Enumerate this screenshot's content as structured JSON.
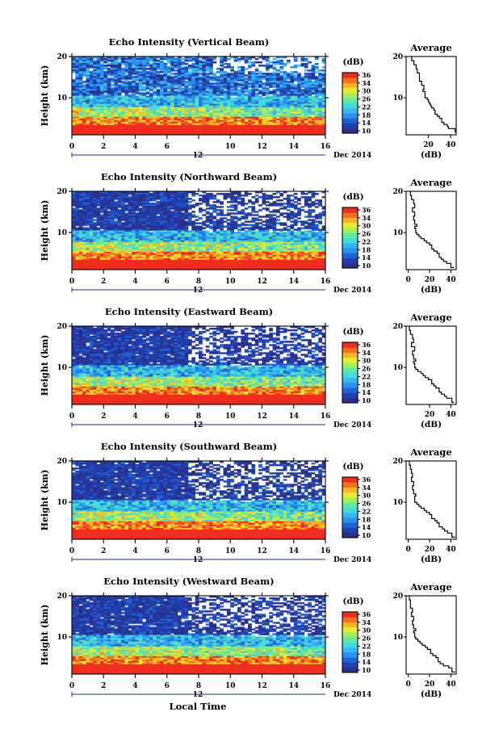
{
  "colors": {
    "colormap": [
      "#2b2f8a",
      "#2140b0",
      "#1f63d8",
      "#2a90f0",
      "#35b8f2",
      "#40dcdc",
      "#5ee8a6",
      "#a3ef5a",
      "#e8ec30",
      "#f8b422",
      "#f86d20",
      "#f02c1e"
    ],
    "line": "#000000",
    "background": "#ffffff"
  },
  "colorbar": {
    "unit": "(dB)",
    "tick_labels": [
      "36",
      "34",
      "30",
      "26",
      "22",
      "18",
      "14",
      "10"
    ],
    "range": [
      10,
      38
    ]
  },
  "profile_title": "Average",
  "profile_xlabel": "(dB)",
  "xaxis": {
    "tick_labels": [
      "0",
      "2",
      "4",
      "6",
      "8",
      "10",
      "12",
      "14",
      "16"
    ],
    "day_label": "12",
    "month_label": "Dec 2014",
    "xlabel": "Local Time"
  },
  "chart_data": [
    {
      "type": "heatmap",
      "title": "Echo Intensity (Vertical Beam)",
      "ylabel": "Height (km)",
      "y_tick_labels": [
        "20",
        "10"
      ],
      "xlim": [
        0,
        16
      ],
      "ylim": [
        1,
        20
      ],
      "x_tick_values": [
        0,
        2,
        4,
        6,
        8,
        10,
        12,
        14,
        16
      ],
      "shown_x_tick_labels": [
        "0",
        "2",
        "4",
        "6",
        "",
        "10",
        "12",
        "14",
        "16"
      ],
      "profile": {
        "type": "line",
        "x_tick_labels": [
          "20",
          "40"
        ],
        "y_tick_labels": [
          "20",
          "10"
        ],
        "xlim": [
          0,
          45
        ],
        "ylim": [
          1,
          20
        ],
        "height_km": [
          1.5,
          2.5,
          3.0,
          3.5,
          4.0,
          5.0,
          5.5,
          6.0,
          7.0,
          7.5,
          8.0,
          8.5,
          9.0,
          9.5,
          10.0,
          11.0,
          11.5,
          12.0,
          13.0,
          14.0,
          15.0,
          16.0,
          17.0,
          18.0,
          19.0,
          20.0
        ],
        "intensity_db": [
          44,
          44,
          38,
          37,
          34,
          32,
          30,
          28,
          26,
          25,
          23,
          22,
          21,
          20,
          19,
          17,
          17,
          15,
          16,
          14,
          12,
          12,
          10,
          9,
          7,
          5
        ]
      }
    },
    {
      "type": "heatmap",
      "title": "Echo Intensity (Northward Beam)",
      "ylabel": "Height (km)",
      "y_tick_labels": [
        "20",
        "10"
      ],
      "xlim": [
        0,
        16
      ],
      "ylim": [
        1,
        20
      ],
      "x_tick_values": [
        0,
        2,
        4,
        6,
        8,
        10,
        12,
        14,
        16
      ],
      "shown_x_tick_labels": [
        "0",
        "2",
        "4",
        "6",
        "8",
        "10",
        "12",
        "14",
        "16"
      ],
      "profile": {
        "type": "line",
        "x_tick_labels": [
          "0",
          "20",
          "40"
        ],
        "y_tick_labels": [
          "20",
          "10"
        ],
        "xlim": [
          -2,
          45
        ],
        "ylim": [
          1,
          20
        ],
        "height_km": [
          1.5,
          2.5,
          3.0,
          3.5,
          4.0,
          5.0,
          5.5,
          6.0,
          7.0,
          7.5,
          8.0,
          8.5,
          9.0,
          9.5,
          10.0,
          11.0,
          11.5,
          12.0,
          13.0,
          14.0,
          15.0,
          16.0,
          17.0,
          18.0,
          19.0,
          20.0
        ],
        "intensity_db": [
          43,
          40,
          36,
          33,
          31,
          29,
          27,
          24,
          22,
          20,
          17,
          15,
          12,
          10,
          8,
          7,
          6,
          8,
          6,
          5,
          6,
          4,
          6,
          5,
          3,
          2
        ]
      }
    },
    {
      "type": "heatmap",
      "title": "Echo Intensity (Eastward Beam)",
      "ylabel": "Height (km)",
      "y_tick_labels": [
        "20",
        "10"
      ],
      "xlim": [
        0,
        16
      ],
      "ylim": [
        1,
        20
      ],
      "x_tick_values": [
        0,
        2,
        4,
        6,
        8,
        10,
        12,
        14,
        16
      ],
      "shown_x_tick_labels": [
        "0",
        "2",
        "4",
        "6",
        "8",
        "10",
        "12",
        "14",
        "16"
      ],
      "profile": {
        "type": "line",
        "x_tick_labels": [
          "20",
          "40"
        ],
        "y_tick_labels": [
          "20",
          "10"
        ],
        "xlim": [
          -2,
          45
        ],
        "ylim": [
          1,
          20
        ],
        "height_km": [
          1.5,
          2.5,
          3.0,
          3.5,
          4.0,
          5.0,
          5.5,
          6.0,
          7.0,
          7.5,
          8.0,
          8.5,
          9.0,
          9.5,
          10.0,
          11.0,
          11.5,
          12.0,
          13.0,
          14.0,
          15.0,
          16.0,
          17.0,
          18.0,
          19.0,
          20.0
        ],
        "intensity_db": [
          43,
          41,
          36,
          34,
          31,
          29,
          26,
          24,
          22,
          19,
          16,
          14,
          12,
          9,
          7,
          6,
          5,
          7,
          5,
          4,
          6,
          3,
          5,
          4,
          2,
          1
        ]
      }
    },
    {
      "type": "heatmap",
      "title": "Echo Intensity (Southward Beam)",
      "ylabel": "Height (km)",
      "y_tick_labels": [
        "20",
        "10"
      ],
      "xlim": [
        0,
        16
      ],
      "ylim": [
        1,
        20
      ],
      "x_tick_values": [
        0,
        2,
        4,
        6,
        8,
        10,
        12,
        14,
        16
      ],
      "shown_x_tick_labels": [
        "0",
        "2",
        "4",
        "6",
        "8",
        "10",
        "12",
        "14",
        "16"
      ],
      "profile": {
        "type": "line",
        "x_tick_labels": [
          "0",
          "20",
          "40"
        ],
        "y_tick_labels": [
          "20",
          "10"
        ],
        "xlim": [
          -2,
          45
        ],
        "ylim": [
          1,
          20
        ],
        "height_km": [
          1.5,
          2.5,
          3.0,
          3.5,
          4.0,
          5.0,
          5.5,
          6.0,
          7.0,
          7.5,
          8.0,
          8.5,
          9.0,
          9.5,
          10.0,
          11.0,
          11.5,
          12.0,
          13.0,
          14.0,
          15.0,
          16.0,
          17.0,
          18.0,
          19.0,
          20.0
        ],
        "intensity_db": [
          44,
          41,
          37,
          34,
          32,
          29,
          27,
          25,
          22,
          20,
          17,
          15,
          12,
          10,
          8,
          6,
          6,
          7,
          5,
          4,
          5,
          3,
          4,
          3,
          2,
          1
        ]
      }
    },
    {
      "type": "heatmap",
      "title": "Echo Intensity (Westward Beam)",
      "ylabel": "Height (km)",
      "y_tick_labels": [
        "20",
        "10"
      ],
      "xlim": [
        0,
        16
      ],
      "ylim": [
        1,
        20
      ],
      "x_tick_values": [
        0,
        2,
        4,
        6,
        8,
        10,
        12,
        14,
        16
      ],
      "shown_x_tick_labels": [
        "0",
        "2",
        "4",
        "6",
        "8",
        "10",
        "12",
        "14",
        "16"
      ],
      "profile": {
        "type": "line",
        "x_tick_labels": [
          "0",
          "20",
          "40"
        ],
        "y_tick_labels": [
          "20",
          "10"
        ],
        "xlim": [
          -2,
          45
        ],
        "ylim": [
          1,
          20
        ],
        "height_km": [
          1.5,
          2.5,
          3.0,
          3.5,
          4.0,
          5.0,
          5.5,
          6.0,
          7.0,
          7.5,
          8.0,
          8.5,
          9.0,
          9.5,
          10.0,
          11.0,
          11.5,
          12.0,
          13.0,
          14.0,
          15.0,
          16.0,
          17.0,
          18.0,
          19.0,
          20.0
        ],
        "intensity_db": [
          44,
          41,
          38,
          33,
          30,
          28,
          26,
          23,
          21,
          18,
          16,
          13,
          11,
          9,
          7,
          6,
          5,
          7,
          5,
          4,
          5,
          3,
          4,
          2,
          2,
          1
        ]
      }
    }
  ]
}
